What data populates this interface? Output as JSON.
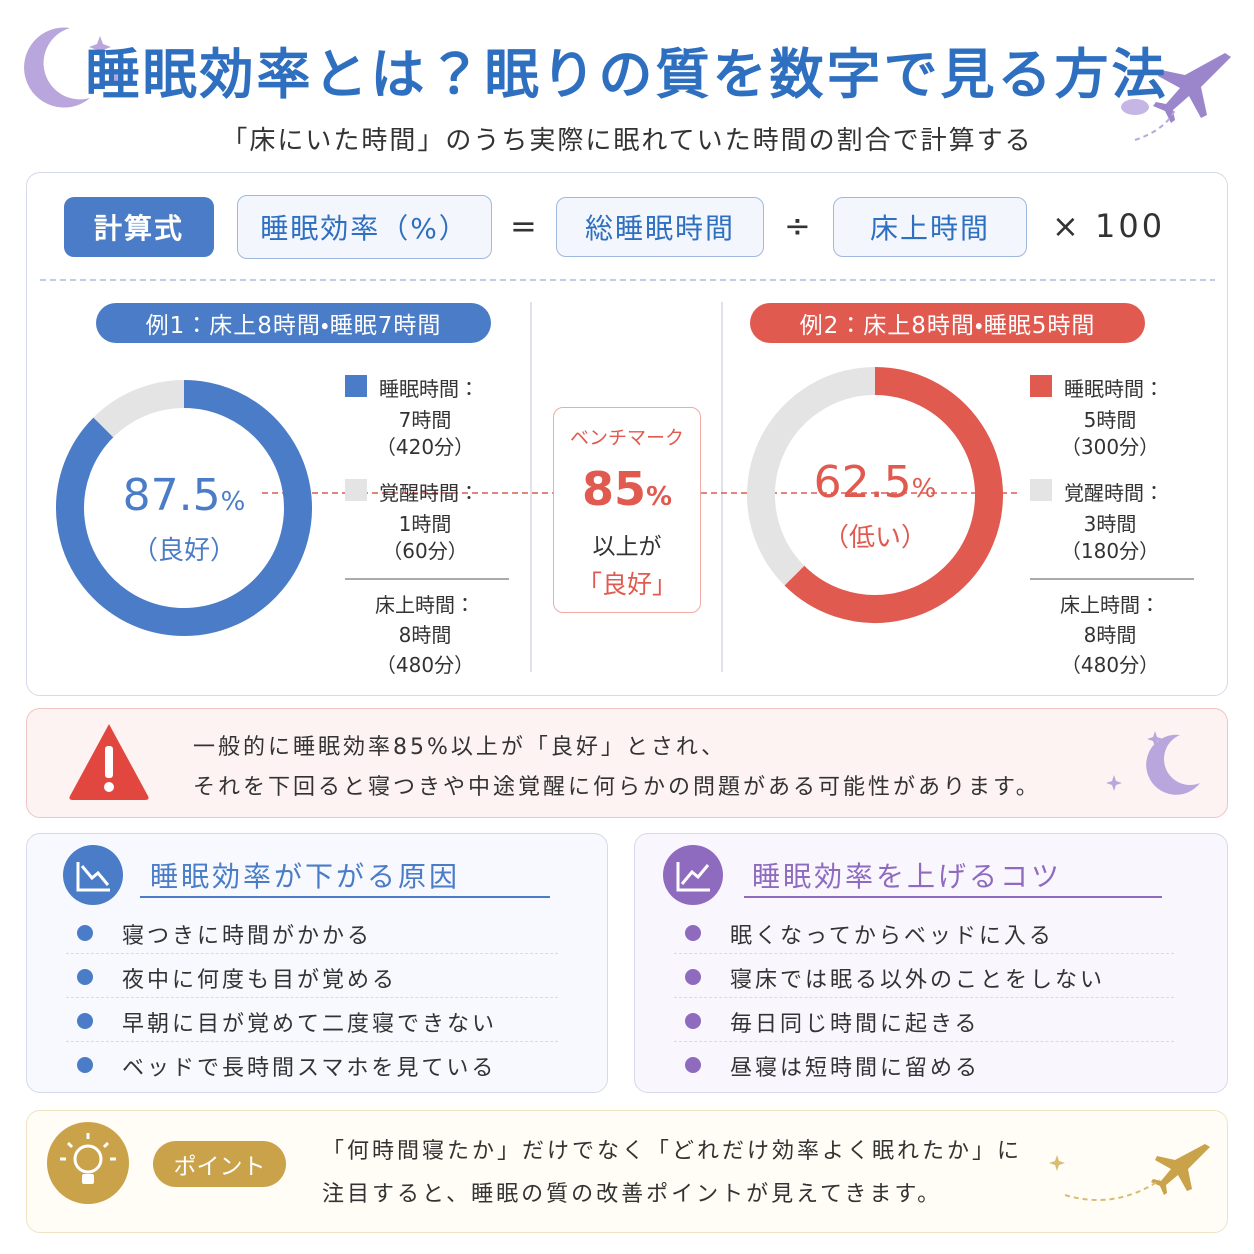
{
  "header": {
    "title": "睡眠効率とは？眠りの質を数字で見る方法",
    "subtitle": "「床にいた時間」のうち実際に眠れていた時間の割合で計算する"
  },
  "formula": {
    "label": "計算式",
    "result": "睡眠効率（%）",
    "equals": "=",
    "numerator": "総睡眠時間",
    "divide": "÷",
    "denominator": "床上時間",
    "multiply": "× 100"
  },
  "benchmark": {
    "title": "ベンチマーク",
    "value": 85,
    "unit": "%",
    "line1": "以上が",
    "line2": "「良好」"
  },
  "examples": [
    {
      "title": "例1：床上8時間・睡眠7時間",
      "color": "#4a7cc7",
      "efficiency": 87.5,
      "unit": "%",
      "rating": "（良好）",
      "segments": [
        {
          "name": "睡眠時間：",
          "duration": "7時間",
          "minutes": 420,
          "minutes_label": "（420分）",
          "color": "#4a7cc7"
        },
        {
          "name": "覚醒時間：",
          "duration": "1時間",
          "minutes": 60,
          "minutes_label": "（60分）",
          "color": "#e4e4e4"
        }
      ],
      "total": {
        "name": "床上時間：",
        "duration": "8時間",
        "minutes_label": "（480分）"
      }
    },
    {
      "title": "例2：床上8時間・睡眠5時間",
      "color": "#e05a50",
      "efficiency": 62.5,
      "unit": "%",
      "rating": "（低い）",
      "segments": [
        {
          "name": "睡眠時間：",
          "duration": "5時間",
          "minutes": 300,
          "minutes_label": "（300分）",
          "color": "#e05a50"
        },
        {
          "name": "覚醒時間：",
          "duration": "3時間",
          "minutes": 180,
          "minutes_label": "（180分）",
          "color": "#e4e4e4"
        }
      ],
      "total": {
        "name": "床上時間：",
        "duration": "8時間",
        "minutes_label": "（480分）"
      }
    }
  ],
  "notice": {
    "line1": "一般的に睡眠効率85%以上が「良好」とされ、",
    "line2": "それを下回ると寝つきや中途覚醒に何らかの問題がある可能性があります。"
  },
  "causes": {
    "title": "睡眠効率が下がる原因",
    "items": [
      "寝つきに時間がかかる",
      "夜中に何度も目が覚める",
      "早朝に目が覚めて二度寝できない",
      "ベッドで長時間スマホを見ている"
    ]
  },
  "tips": {
    "title": "睡眠効率を上げるコツ",
    "items": [
      "眠くなってからベッドに入る",
      "寝床では眠る以外のことをしない",
      "毎日同じ時間に起きる",
      "昼寝は短時間に留める"
    ]
  },
  "point": {
    "badge": "ポイント",
    "line1": "「何時間寝たか」だけでなく「どれだけ効率よく眠れたか」に",
    "line2": "注目すると、睡眠の質の改善ポイントが見えてきます。"
  }
}
